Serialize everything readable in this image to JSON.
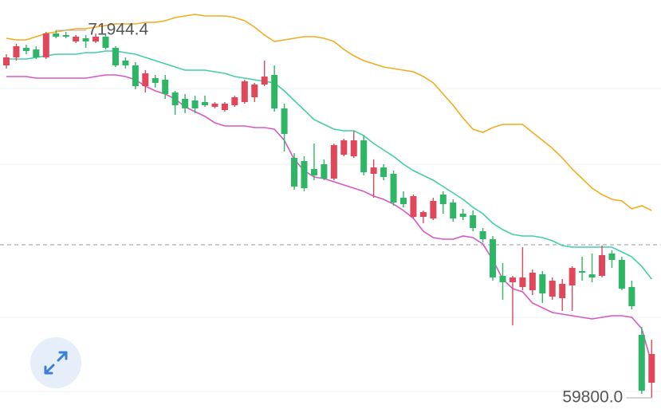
{
  "chart_data": {
    "type": "candlestick",
    "up_color": "#e0475b",
    "down_color": "#2eb566",
    "ylim": [
      59169,
      72945
    ],
    "open": [
      70785,
      71049,
      71365,
      71312,
      71049,
      71839,
      71786,
      71575,
      71681,
      71575,
      71733,
      71365,
      70943,
      70785,
      70100,
      70364,
      70311,
      69890,
      69679,
      69626,
      69574,
      69415,
      69310,
      69468,
      69574,
      69732,
      70153,
      70469,
      69363,
      67730,
      67624,
      67361,
      67519,
      67045,
      67835,
      67782,
      68309,
      67203,
      67413,
      67203,
      66413,
      65780,
      65780,
      65728,
      66518,
      66255,
      65886,
      65833,
      65306,
      65043,
      63831,
      63621,
      63462,
      63357,
      63884,
      63146,
      63094,
      63515,
      63989,
      63884,
      63831,
      64569,
      64358,
      63462,
      61882,
      60301
    ],
    "high": [
      71154,
      71496,
      71470,
      71417,
      71891,
      71944.4,
      71891,
      71786,
      71786,
      71839,
      71839,
      71417,
      71049,
      70890,
      70627,
      70469,
      70469,
      69942,
      69837,
      69784,
      69784,
      69574,
      69574,
      69784,
      70311,
      70206,
      70943,
      70785,
      69521,
      67888,
      67782,
      68204,
      67677,
      68204,
      68362,
      68625,
      68467,
      67677,
      67519,
      67308,
      66623,
      66518,
      65991,
      66413,
      66623,
      66360,
      66044,
      65991,
      65412,
      65148,
      64252,
      63831,
      64779,
      64042,
      63989,
      63779,
      63726,
      64147,
      64463,
      64569,
      64832,
      64674,
      64463,
      63673,
      62145,
      61725
    ],
    "low": [
      70680,
      70943,
      71154,
      70996,
      70996,
      71681,
      71681,
      71523,
      71365,
      71523,
      71312,
      70732,
      70680,
      69995,
      69890,
      70048,
      69679,
      69152,
      69205,
      69205,
      69415,
      69363,
      69257,
      69415,
      69521,
      69574,
      70100,
      69257,
      67940,
      66676,
      66623,
      66992,
      66992,
      66992,
      67782,
      67730,
      67150,
      66413,
      66992,
      66149,
      66096,
      65728,
      65570,
      65675,
      65886,
      65622,
      65675,
      65306,
      64938,
      63673,
      63041,
      62198,
      63357,
      63199,
      62935,
      63041,
      62672,
      62672,
      63673,
      63621,
      63779,
      64095,
      63357,
      62725,
      59933,
      59800
    ],
    "close": [
      71049,
      71417,
      71259,
      71049,
      71839,
      71733,
      71733,
      71733,
      71575,
      71733,
      71365,
      70785,
      70785,
      70100,
      70522,
      70206,
      69837,
      69468,
      69363,
      69363,
      69468,
      69521,
      69521,
      69732,
      70258,
      70153,
      70416,
      69363,
      68520,
      66781,
      66729,
      67150,
      67045,
      68151,
      68309,
      68309,
      67255,
      67413,
      67097,
      66255,
      66202,
      66465,
      65938,
      66307,
      66202,
      65728,
      65780,
      65412,
      65043,
      63779,
      63621,
      63779,
      63779,
      63937,
      63252,
      63673,
      63568,
      64095,
      63937,
      63779,
      64516,
      64358,
      63410,
      62830,
      60038,
      61251
    ],
    "bands": [
      {
        "color": "#f2ac1f",
        "values": [
          71681,
          71628,
          71628,
          71733,
          71839,
          71891,
          71944,
          71997,
          71997,
          72049,
          72102,
          72155,
          72155,
          72155,
          72207,
          72207,
          72260,
          72366,
          72418,
          72471,
          72418,
          72418,
          72418,
          72366,
          72260,
          72049,
          71786,
          71575,
          71628,
          71681,
          71733,
          71733,
          71681,
          71575,
          71312,
          71101,
          70943,
          70838,
          70732,
          70680,
          70627,
          70574,
          70416,
          70206,
          69837,
          69468,
          69047,
          68678,
          68572,
          68730,
          68836,
          68836,
          68836,
          68572,
          68309,
          68046,
          67730,
          67361,
          67045,
          66729,
          66518,
          66360,
          66307,
          66044,
          66149,
          65991
        ]
      },
      {
        "color": "#41cfa8",
        "values": [
          70996,
          70996,
          70996,
          71049,
          71101,
          71154,
          71154,
          71154,
          71207,
          71207,
          71259,
          71259,
          71207,
          71154,
          71049,
          70943,
          70838,
          70732,
          70627,
          70627,
          70627,
          70574,
          70522,
          70416,
          70364,
          70311,
          70258,
          70206,
          69942,
          69626,
          69310,
          68994,
          68836,
          68678,
          68625,
          68625,
          68467,
          68204,
          67993,
          67782,
          67519,
          67308,
          67150,
          66992,
          66781,
          66571,
          66360,
          66096,
          65886,
          65570,
          65359,
          65201,
          65148,
          65148,
          65096,
          64990,
          64832,
          64779,
          64779,
          64779,
          64779,
          64779,
          64621,
          64463,
          64147,
          63726
        ]
      },
      {
        "color": "#d957c4",
        "values": [
          70416,
          70416,
          70416,
          70364,
          70364,
          70364,
          70364,
          70364,
          70364,
          70416,
          70469,
          70469,
          70416,
          70311,
          70100,
          69942,
          69837,
          69679,
          69415,
          69257,
          69099,
          68889,
          68783,
          68783,
          68783,
          68730,
          68730,
          68678,
          68309,
          67677,
          67308,
          67097,
          67045,
          66939,
          66834,
          66729,
          66623,
          66465,
          66360,
          66202,
          65991,
          65728,
          65306,
          65096,
          65043,
          65043,
          65148,
          65096,
          64885,
          64358,
          63726,
          63410,
          63304,
          62935,
          62777,
          62619,
          62567,
          62514,
          62461,
          62408,
          62461,
          62514,
          62514,
          62461,
          62093,
          60934
        ]
      }
    ],
    "reference_line": 64859,
    "annotations": [
      {
        "value": 71944.4,
        "label": "71944.4"
      },
      {
        "value": 59800,
        "label": "59800.0"
      }
    ]
  }
}
